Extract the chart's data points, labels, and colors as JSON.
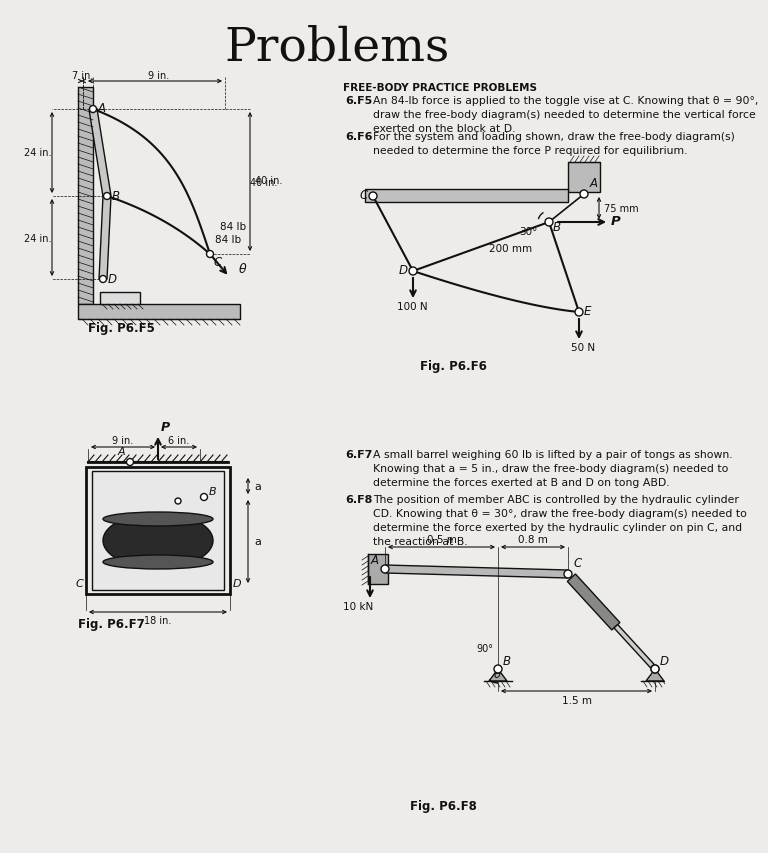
{
  "title": "Problems",
  "bg_color": "#eeece8",
  "text_color": "#111111",
  "header": "FREE-BODY PRACTICE PROBLEMS",
  "p6f5_label": "6.F5",
  "p6f5_text": "An 84-lb force is applied to the toggle vise at C. Knowing that θ = 90°,\ndraw the free-body diagram(s) needed to determine the vertical force\nexerted on the block at D.",
  "p6f6_label": "6.F6",
  "p6f6_text": "For the system and loading shown, draw the free-body diagram(s)\nneeded to determine the force P required for equilibrium.",
  "p6f7_label": "6.F7",
  "p6f7_text": "A small barrel weighing 60 lb is lifted by a pair of tongs as shown.\nKnowing that a = 5 in., draw the free-body diagram(s) needed to\ndetermine the forces exerted at B and D on tong ABD.",
  "p6f8_label": "6.F8",
  "p6f8_text": "The position of member ABC is controlled by the hydraulic cylinder\nCD. Knowing that θ = 30°, draw the free-body diagram(s) needed to\ndetermine the force exerted by the hydraulic cylinder on pin C, and\nthe reaction at B.",
  "fig_p6f5": "Fig. P6.F5",
  "fig_p6f6": "Fig. P6.F6",
  "fig_p6f7": "Fig. P6.F7",
  "fig_p6f8": "Fig. P6.F8"
}
